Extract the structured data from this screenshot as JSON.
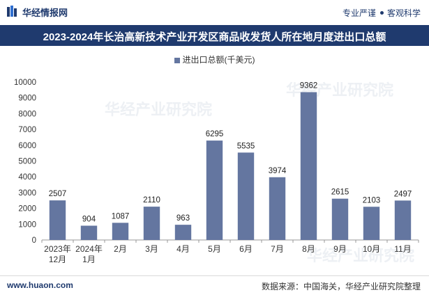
{
  "header": {
    "brand": "华经情报网",
    "tag1": "专业严谨",
    "tag2": "客观科学"
  },
  "title": "2023-2024年长治高新技术产业开发区商品收发货人所在地月度进出口总额",
  "footer": {
    "website": "www.huaon.com",
    "source": "数据来源：中国海关，华经产业研究院整理"
  },
  "watermark": "华经产业研究院",
  "colors": {
    "bar": "#6476a0",
    "title_bg": "#1f3a6e"
  },
  "chart_data": {
    "type": "bar",
    "title": "2023-2024年长治高新技术产业开发区商品收发货人所在地月度进出口总额",
    "legend": "进出口总额(千美元)",
    "categories": [
      "2023年12月",
      "2024年1月",
      "2月",
      "3月",
      "4月",
      "5月",
      "6月",
      "7月",
      "8月",
      "9月",
      "10月",
      "11月"
    ],
    "category_lines": [
      [
        "2023年",
        "12月"
      ],
      [
        "2024年",
        "1月"
      ],
      [
        "2月"
      ],
      [
        "3月"
      ],
      [
        "4月"
      ],
      [
        "5月"
      ],
      [
        "6月"
      ],
      [
        "7月"
      ],
      [
        "8月"
      ],
      [
        "9月"
      ],
      [
        "10月"
      ],
      [
        "11月"
      ]
    ],
    "series": [
      {
        "name": "进出口总额(千美元)",
        "values": [
          2507,
          904,
          1087,
          2110,
          963,
          6295,
          5535,
          3974,
          9362,
          2615,
          2103,
          2497
        ]
      }
    ],
    "yticks": [
      0,
      1000,
      2000,
      3000,
      4000,
      5000,
      6000,
      7000,
      8000,
      9000,
      10000
    ],
    "ylim": [
      0,
      10000
    ],
    "xlabel": "",
    "ylabel": ""
  }
}
